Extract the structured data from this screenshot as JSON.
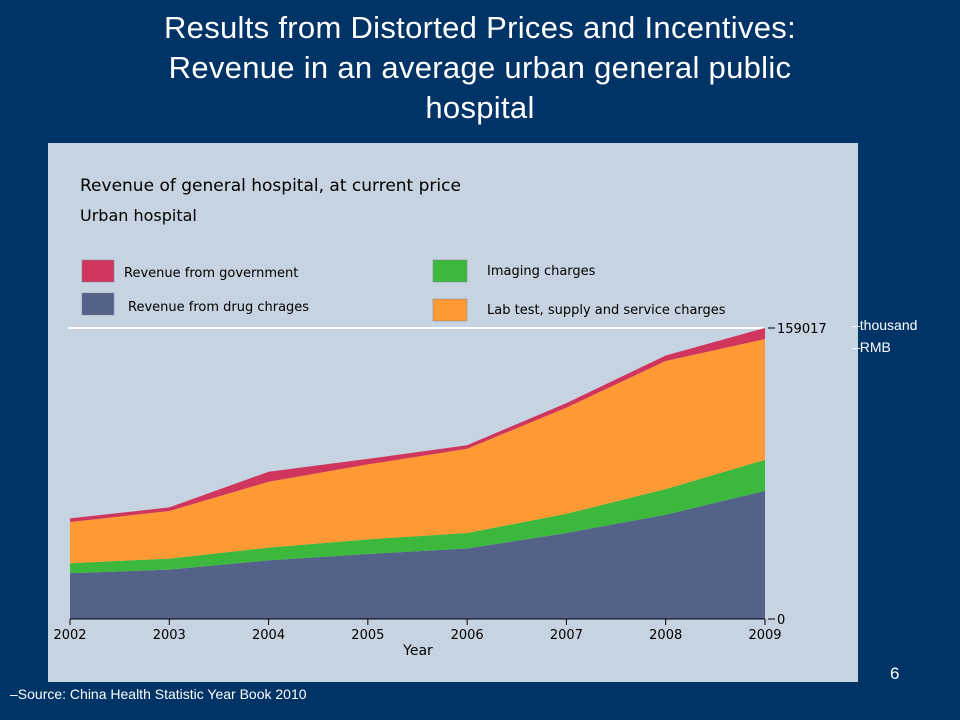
{
  "slide": {
    "title_lines": [
      "Results from Distorted Prices and Incentives:",
      "Revenue in an average urban general public",
      "hospital"
    ],
    "unit_note": [
      "–thousand",
      "–RMB"
    ],
    "source": "–Source: China Health Statistic Year Book 2010",
    "page_number": "6"
  },
  "chart_data": {
    "type": "area",
    "stacked": true,
    "title": "Revenue of general hospital, at current price",
    "subtitle": "Urban hospital",
    "xlabel": "Year",
    "ylabel": "",
    "x": [
      "2002",
      "2003",
      "2004",
      "2005",
      "2006",
      "2007",
      "2008",
      "2009"
    ],
    "ylim": [
      0,
      159017
    ],
    "y_tick_labels": [
      "0",
      "159017"
    ],
    "legend_placement": "top",
    "series": [
      {
        "name": "Revenue from drug chrages",
        "color": "#546189",
        "values": [
          25000,
          27000,
          32000,
          35500,
          38500,
          47000,
          57000,
          70000
        ]
      },
      {
        "name": "Imaging charges",
        "color": "#3cb83c",
        "values": [
          5500,
          6000,
          7000,
          8000,
          8500,
          10500,
          14000,
          17000
        ]
      },
      {
        "name": "Lab test, supply and service charges",
        "color": "#ff9933",
        "values": [
          22500,
          26000,
          36000,
          41000,
          46000,
          58000,
          70000,
          66000
        ]
      },
      {
        "name": "Revenue from government",
        "color": "#d0355e",
        "values": [
          2000,
          2000,
          5500,
          3000,
          2000,
          2500,
          3000,
          6017
        ]
      }
    ]
  }
}
